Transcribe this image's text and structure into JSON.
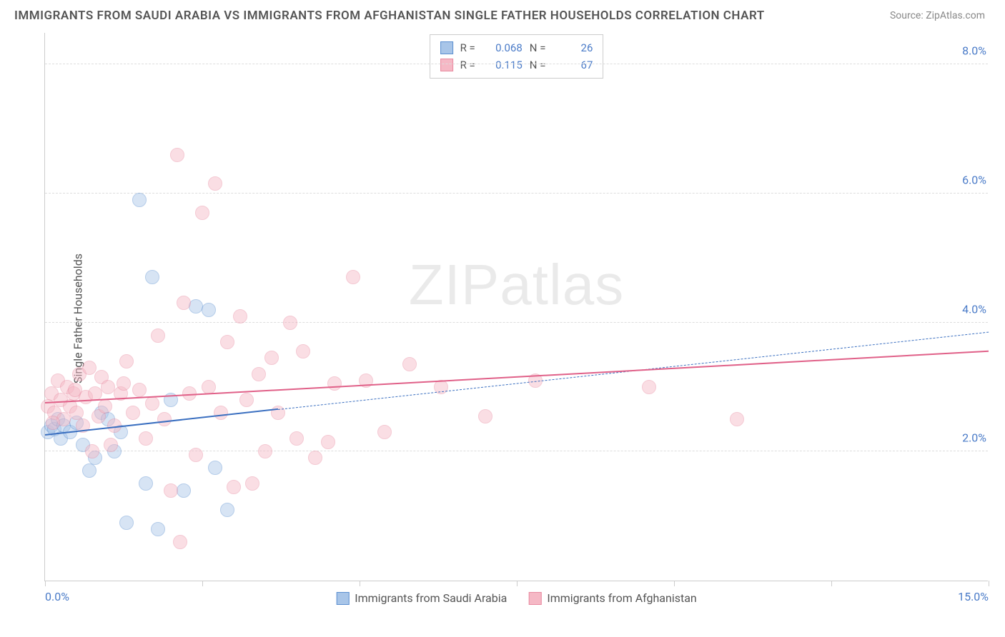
{
  "title": "IMMIGRANTS FROM SAUDI ARABIA VS IMMIGRANTS FROM AFGHANISTAN SINGLE FATHER HOUSEHOLDS CORRELATION CHART",
  "source": "Source: ZipAtlas.com",
  "ylabel": "Single Father Households",
  "watermark_a": "ZIP",
  "watermark_b": "atlas",
  "chart": {
    "type": "scatter",
    "background_color": "#ffffff",
    "grid_color": "#dddddd",
    "axis_color": "#cccccc",
    "tick_label_color": "#4a7bc8",
    "xlim": [
      0,
      15
    ],
    "ylim": [
      0,
      8.5
    ],
    "yticks": [
      2.0,
      4.0,
      6.0,
      8.0
    ],
    "ytick_labels": [
      "2.0%",
      "4.0%",
      "6.0%",
      "8.0%"
    ],
    "xticks": [
      0,
      2.5,
      5.0,
      7.5,
      10.0,
      12.5,
      15.0
    ],
    "xtick_labels_shown": {
      "0": "0.0%",
      "15": "15.0%"
    },
    "marker_radius": 10,
    "marker_opacity": 0.45,
    "series": [
      {
        "name": "Immigrants from Saudi Arabia",
        "color_fill": "#a8c5e8",
        "color_stroke": "#5b8fd0",
        "r": "0.068",
        "n": "26",
        "trend": {
          "x1": 0,
          "y1": 2.25,
          "x2": 3.7,
          "y2": 2.65,
          "dash_to_x": 15,
          "dash_to_y": 3.85,
          "color": "#3a6fc0"
        },
        "points": [
          [
            0.05,
            2.3
          ],
          [
            0.1,
            2.4
          ],
          [
            0.15,
            2.35
          ],
          [
            0.2,
            2.5
          ],
          [
            0.25,
            2.2
          ],
          [
            0.3,
            2.4
          ],
          [
            0.4,
            2.3
          ],
          [
            0.5,
            2.45
          ],
          [
            0.6,
            2.1
          ],
          [
            0.7,
            1.7
          ],
          [
            0.8,
            1.9
          ],
          [
            0.9,
            2.6
          ],
          [
            1.0,
            2.5
          ],
          [
            1.1,
            2.0
          ],
          [
            1.3,
            0.9
          ],
          [
            1.5,
            5.9
          ],
          [
            1.6,
            1.5
          ],
          [
            1.7,
            4.7
          ],
          [
            1.8,
            0.8
          ],
          [
            2.0,
            2.8
          ],
          [
            2.2,
            1.4
          ],
          [
            2.4,
            4.25
          ],
          [
            2.6,
            4.2
          ],
          [
            2.7,
            1.75
          ],
          [
            2.9,
            1.1
          ],
          [
            1.2,
            2.3
          ]
        ]
      },
      {
        "name": "Immigrants from Afghanistan",
        "color_fill": "#f5b8c5",
        "color_stroke": "#e88aa0",
        "r": "0.115",
        "n": "67",
        "trend": {
          "x1": 0,
          "y1": 2.75,
          "x2": 15,
          "y2": 3.55,
          "color": "#e06088"
        },
        "points": [
          [
            0.05,
            2.7
          ],
          [
            0.1,
            2.9
          ],
          [
            0.15,
            2.6
          ],
          [
            0.2,
            3.1
          ],
          [
            0.25,
            2.8
          ],
          [
            0.3,
            2.5
          ],
          [
            0.35,
            3.0
          ],
          [
            0.4,
            2.7
          ],
          [
            0.45,
            2.9
          ],
          [
            0.5,
            2.6
          ],
          [
            0.55,
            3.2
          ],
          [
            0.6,
            2.4
          ],
          [
            0.65,
            2.85
          ],
          [
            0.7,
            3.3
          ],
          [
            0.75,
            2.0
          ],
          [
            0.8,
            2.9
          ],
          [
            0.85,
            2.55
          ],
          [
            0.9,
            3.15
          ],
          [
            0.95,
            2.7
          ],
          [
            1.0,
            3.0
          ],
          [
            1.1,
            2.4
          ],
          [
            1.2,
            2.9
          ],
          [
            1.3,
            3.4
          ],
          [
            1.4,
            2.6
          ],
          [
            1.5,
            2.95
          ],
          [
            1.6,
            2.2
          ],
          [
            1.7,
            2.75
          ],
          [
            1.8,
            3.8
          ],
          [
            1.9,
            2.5
          ],
          [
            2.0,
            1.4
          ],
          [
            2.1,
            6.6
          ],
          [
            2.15,
            0.6
          ],
          [
            2.2,
            4.3
          ],
          [
            2.3,
            2.9
          ],
          [
            2.4,
            1.95
          ],
          [
            2.5,
            5.7
          ],
          [
            2.6,
            3.0
          ],
          [
            2.7,
            6.15
          ],
          [
            2.8,
            2.6
          ],
          [
            2.9,
            3.7
          ],
          [
            3.0,
            1.45
          ],
          [
            3.1,
            4.1
          ],
          [
            3.2,
            2.8
          ],
          [
            3.3,
            1.5
          ],
          [
            3.4,
            3.2
          ],
          [
            3.5,
            2.0
          ],
          [
            3.6,
            3.45
          ],
          [
            3.7,
            2.6
          ],
          [
            3.9,
            4.0
          ],
          [
            4.0,
            2.2
          ],
          [
            4.1,
            3.55
          ],
          [
            4.3,
            1.9
          ],
          [
            4.5,
            2.15
          ],
          [
            4.6,
            3.05
          ],
          [
            4.9,
            4.7
          ],
          [
            5.1,
            3.1
          ],
          [
            5.4,
            2.3
          ],
          [
            5.8,
            3.35
          ],
          [
            6.3,
            3.0
          ],
          [
            7.0,
            2.55
          ],
          [
            7.8,
            3.1
          ],
          [
            9.6,
            3.0
          ],
          [
            11.0,
            2.5
          ],
          [
            1.05,
            2.1
          ],
          [
            0.12,
            2.45
          ],
          [
            0.48,
            2.95
          ],
          [
            1.25,
            3.05
          ]
        ]
      }
    ],
    "stat_legend_labels": {
      "r": "R =",
      "n": "N ="
    }
  }
}
